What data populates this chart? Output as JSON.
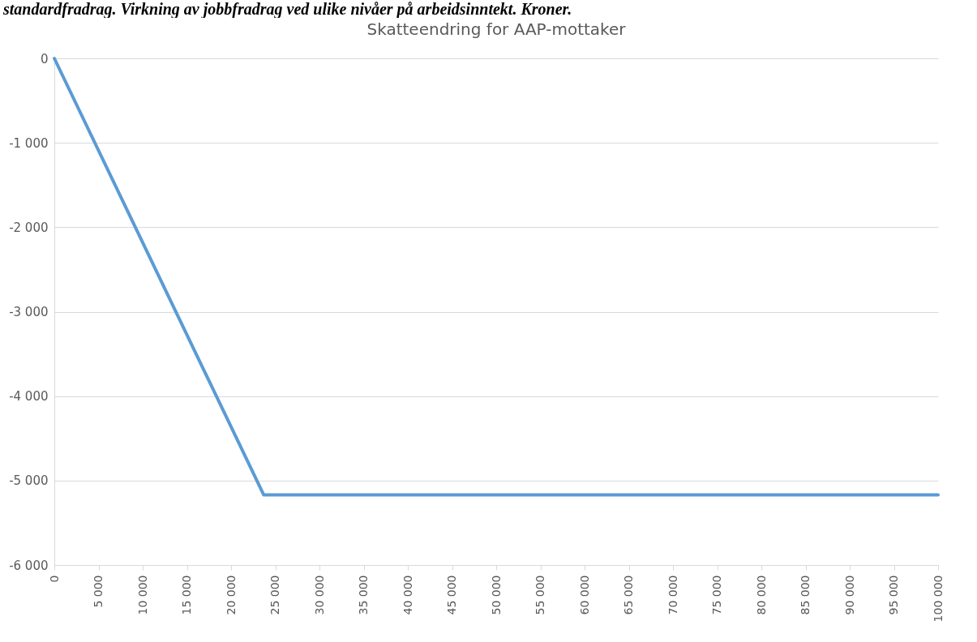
{
  "chart_data": {
    "type": "line",
    "title": "Skatteendring for AAP-mottaker",
    "annotations": [
      "standardfradrag. Virkning av jobbfradrag ved ulike nivåer på arbeidsinntekt. Kroner."
    ],
    "x": [
      0,
      23700,
      100000
    ],
    "series": [
      {
        "color": "#5b9bd5",
        "values": [
          0,
          -5170,
          -5170
        ]
      }
    ],
    "xlim": [
      0,
      100000
    ],
    "xticks": [
      0,
      {
        "value": 5000,
        "label": "5 000"
      },
      {
        "value": 10000,
        "label": "10 000"
      },
      {
        "value": 15000,
        "label": "15 000"
      },
      {
        "value": 20000,
        "label": "20 000"
      },
      {
        "value": 25000,
        "label": "25 000"
      },
      {
        "value": 30000,
        "label": "30 000"
      },
      {
        "value": 35000,
        "label": "35 000"
      },
      {
        "value": 40000,
        "label": "40 000"
      },
      {
        "value": 45000,
        "label": "45 000"
      },
      {
        "value": 50000,
        "label": "50 000"
      },
      {
        "value": 55000,
        "label": "55 000"
      },
      {
        "value": 60000,
        "label": "60 000"
      },
      {
        "value": 65000,
        "label": "65 000"
      },
      {
        "value": 70000,
        "label": "70 000"
      },
      {
        "value": 75000,
        "label": "75 000"
      },
      {
        "value": 80000,
        "label": "80 000"
      },
      {
        "value": 85000,
        "label": "85 000"
      },
      {
        "value": 90000,
        "label": "90 000"
      },
      {
        "value": 95000,
        "label": "95 000"
      },
      {
        "value": 100000,
        "label": "100 000"
      }
    ],
    "ylim": [
      -6000,
      0
    ],
    "yticks": [
      0,
      {
        "value": -1000,
        "label": "-1 000"
      },
      {
        "value": -2000,
        "label": "-2 000"
      },
      {
        "value": -3000,
        "label": "-3 000"
      },
      {
        "value": -4000,
        "label": "-4 000"
      },
      {
        "value": -5000,
        "label": "-5 000"
      },
      {
        "value": -6000,
        "label": "-6 000"
      }
    ],
    "grid": "y",
    "legend": false,
    "marker": "none",
    "line_style": "solid"
  }
}
